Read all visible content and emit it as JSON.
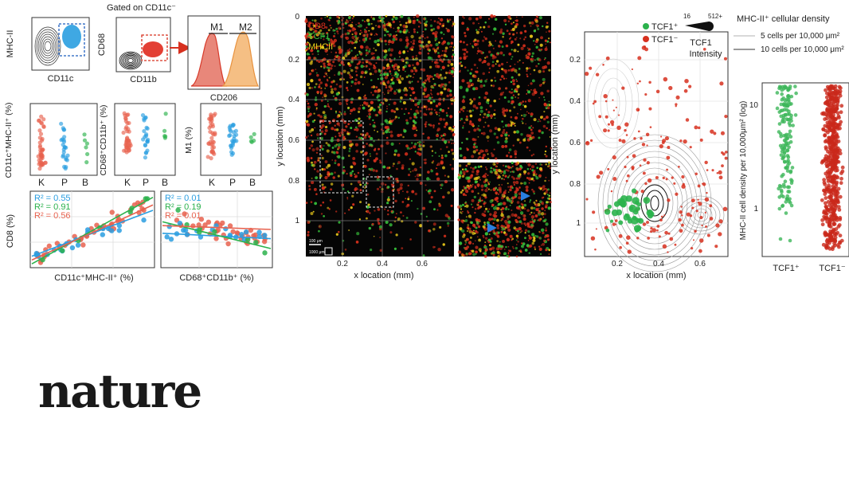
{
  "brand": {
    "name": "nature"
  },
  "colors": {
    "red": "#d73a2a",
    "salmon": "#e8624f",
    "blue": "#2a9ee0",
    "green": "#2bb24c",
    "orange": "#f2a04a",
    "yellow": "#e6d21a"
  },
  "panel_a": {
    "plot1": {
      "ylabel": "MHC-II",
      "xlabel": "CD11c"
    },
    "plot2": {
      "title": "Gated on CD11c⁻",
      "ylabel": "CD68",
      "xlabel": "CD11b"
    },
    "hist": {
      "xlabel": "CD206",
      "m1": "M1",
      "m2": "M2"
    }
  },
  "panel_b": {
    "groups": [
      "K",
      "P",
      "B"
    ],
    "strip1": {
      "ylabel": "CD11c⁺MHC-II⁺ (%)"
    },
    "strip2": {
      "ylabel": "CD68⁺CD11b⁺ (%)"
    },
    "strip3": {
      "ylabel": "M1 (%)"
    }
  },
  "panel_c": {
    "ylabel": "CD8 (%)",
    "left": {
      "xlabel": "CD11c⁺MHC-II⁺ (%)",
      "r2": [
        "R² = 0.55",
        "R² = 0.91",
        "R² = 0.56"
      ]
    },
    "right": {
      "xlabel": "CD68⁺CD11b⁺ (%)",
      "r2": [
        "R² = 0.01",
        "R² = 0.19",
        "R² = 0.01"
      ]
    }
  },
  "panel_d": {
    "legend": [
      "CD8",
      "TCF1",
      "MHCII"
    ],
    "yticks": [
      "0",
      "0.2",
      "0.4",
      "0.6",
      "0.8",
      "1"
    ],
    "xticks": [
      "0.2",
      "0.4",
      "0.6"
    ],
    "xlabel": "x location (mm)",
    "ylabel": "y location (mm)",
    "scale1": "100 μm",
    "scale2": "1000 μm"
  },
  "panel_e": {
    "legend_pos": "TCF1⁺",
    "legend_neg": "TCF1⁻",
    "size_min": "16",
    "size_max": "512+",
    "size_title": "TCF1",
    "size_sub": "Intensity",
    "density_title": "MHC-II⁺ cellular density",
    "density_5": "5 cells per 10,000 μm²",
    "density_10": "10 cells per 10,000 μm²",
    "yticks": [
      "0.2",
      "0.4",
      "0.6",
      "0.8",
      "1"
    ],
    "xticks": [
      "0.2",
      "0.4",
      "0.6"
    ],
    "xlabel": "x location (mm)",
    "ylabel": "y location (mm)"
  },
  "panel_f": {
    "ylabel": "MHC-II cell density per 10,000μm² (log)",
    "yticks": [
      "10",
      "1"
    ],
    "categories": [
      "TCF1⁺",
      "TCF1⁻"
    ]
  }
}
